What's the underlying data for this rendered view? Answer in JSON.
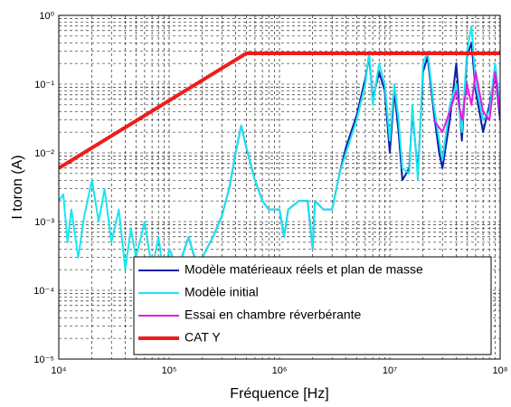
{
  "chart_data": {
    "type": "line",
    "xscale": "log",
    "yscale": "log",
    "grid": true,
    "minor_grid": true,
    "legend": "lower right",
    "xlabel": "Fréquence [Hz]",
    "ylabel": "I toron (A)",
    "xlim": [
      10000,
      100000000
    ],
    "xticks": [
      {
        "value": 10000,
        "label": "10⁴"
      },
      {
        "value": 100000,
        "label": "10⁵"
      },
      {
        "value": 1000000,
        "label": "10⁶"
      },
      {
        "value": 10000000,
        "label": "10⁷"
      },
      {
        "value": 100000000,
        "label": "10⁸"
      }
    ],
    "ylim": [
      1e-05,
      1
    ],
    "yticks": [
      {
        "value": 1e-05,
        "label": "10⁻⁵"
      },
      {
        "value": 0.0001,
        "label": "10⁻⁴"
      },
      {
        "value": 0.001,
        "label": "10⁻³"
      },
      {
        "value": 0.01,
        "label": "10⁻²"
      },
      {
        "value": 0.1,
        "label": "10⁻¹"
      },
      {
        "value": 1,
        "label": "10⁰"
      }
    ],
    "series": [
      {
        "name": "Modèle matérieaux réels et plan de masse",
        "color": "#0a1fa8",
        "width": 2,
        "x": [
          100000,
          120000,
          150000,
          170000,
          200000,
          250000,
          300000,
          350000,
          400000,
          450000,
          500000,
          600000,
          700000,
          800000,
          1000000,
          1100000,
          1200000,
          1500000,
          1800000,
          2000000,
          2100000,
          2500000,
          3000000,
          3500000,
          4000000,
          5000000,
          6000000,
          6500000,
          7000000,
          8000000,
          9000000,
          10000000,
          11000000,
          12000000,
          13000000,
          15000000,
          16000000,
          18000000,
          20000000,
          22000000,
          25000000,
          28000000,
          30000000,
          35000000,
          40000000,
          45000000,
          50000000,
          55000000,
          60000000,
          70000000,
          80000000,
          90000000,
          100000000
        ],
        "values": [
          0.0004,
          0.0002,
          0.0006,
          0.0003,
          0.0003,
          0.0006,
          0.0012,
          0.003,
          0.01,
          0.025,
          0.012,
          0.004,
          0.002,
          0.0015,
          0.0015,
          0.0006,
          0.0015,
          0.002,
          0.002,
          0.0004,
          0.002,
          0.0015,
          0.0015,
          0.005,
          0.012,
          0.035,
          0.12,
          0.25,
          0.06,
          0.15,
          0.08,
          0.01,
          0.08,
          0.02,
          0.004,
          0.006,
          0.04,
          0.005,
          0.15,
          0.25,
          0.04,
          0.01,
          0.006,
          0.03,
          0.2,
          0.015,
          0.25,
          0.4,
          0.08,
          0.02,
          0.05,
          0.15,
          0.03
        ]
      },
      {
        "name": "Modèle initial",
        "color": "#19e6f0",
        "width": 2,
        "x": [
          10000,
          11000,
          12000,
          13000,
          15000,
          17000,
          20000,
          23000,
          26000,
          30000,
          35000,
          40000,
          45000,
          50000,
          60000,
          70000,
          80000,
          90000,
          100000,
          120000,
          150000,
          170000,
          200000,
          250000,
          300000,
          350000,
          400000,
          450000,
          500000,
          600000,
          700000,
          800000,
          1000000,
          1100000,
          1200000,
          1500000,
          1800000,
          2000000,
          2100000,
          2500000,
          3000000,
          3500000,
          4000000,
          5000000,
          6000000,
          6500000,
          7000000,
          8000000,
          9000000,
          10000000,
          11000000,
          12000000,
          13000000,
          15000000,
          16000000,
          18000000,
          20000000,
          22000000,
          25000000,
          28000000,
          30000000,
          35000000,
          40000000,
          45000000,
          50000000,
          55000000,
          60000000,
          70000000,
          80000000,
          90000000,
          100000000
        ],
        "values": [
          0.002,
          0.0025,
          0.0005,
          0.0015,
          0.0003,
          0.0012,
          0.004,
          0.001,
          0.003,
          0.0005,
          0.0015,
          0.0002,
          0.0008,
          0.0003,
          0.001,
          0.0002,
          0.0006,
          0.00015,
          0.0004,
          0.0002,
          0.0006,
          0.0003,
          0.0003,
          0.0006,
          0.0012,
          0.003,
          0.01,
          0.025,
          0.012,
          0.004,
          0.002,
          0.0015,
          0.0015,
          0.0006,
          0.0015,
          0.002,
          0.002,
          0.0004,
          0.002,
          0.0015,
          0.0015,
          0.005,
          0.01,
          0.03,
          0.1,
          0.3,
          0.05,
          0.2,
          0.1,
          0.015,
          0.1,
          0.03,
          0.006,
          0.005,
          0.05,
          0.004,
          0.2,
          0.3,
          0.05,
          0.015,
          0.008,
          0.05,
          0.1,
          0.02,
          0.3,
          0.7,
          0.1,
          0.03,
          0.04,
          0.2,
          0.05
        ]
      },
      {
        "name": "Essai en chambre réverbérante",
        "color": "#e619e6",
        "width": 2,
        "x": [
          25000000,
          30000000,
          35000000,
          40000000,
          45000000,
          50000000,
          55000000,
          60000000,
          70000000,
          80000000,
          90000000,
          100000000
        ],
        "values": [
          0.03,
          0.02,
          0.04,
          0.08,
          0.03,
          0.1,
          0.05,
          0.15,
          0.04,
          0.03,
          0.15,
          0.04
        ]
      },
      {
        "name": "CAT Y",
        "color": "#ee1c1c",
        "width": 4,
        "x": [
          10000,
          500000,
          100000000
        ],
        "values": [
          0.006,
          0.28,
          0.28
        ]
      }
    ]
  }
}
